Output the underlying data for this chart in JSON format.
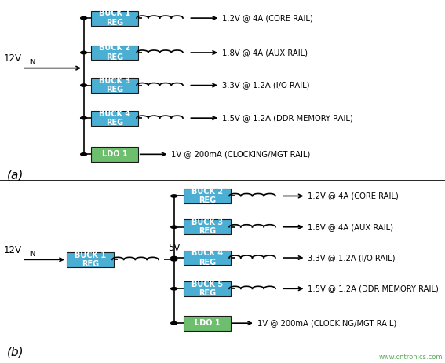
{
  "bg_color": "#ffffff",
  "buck_color": "#4bafd4",
  "ldo_color": "#6dbe6d",
  "line_color": "#000000",
  "watermark_color": "#5aab5a",
  "diagram_a": {
    "label": "(a)",
    "vin_text": "12V",
    "vin_sub": "IN",
    "bucks": [
      {
        "name": "BUCK 1\nREG",
        "output": "1.2V @ 4A (CORE RAIL)"
      },
      {
        "name": "BUCK 2\nREG",
        "output": "1.8V @ 4A (AUX RAIL)"
      },
      {
        "name": "BUCK 3\nREG",
        "output": "3.3V @ 1.2A (I/O RAIL)"
      },
      {
        "name": "BUCK 4\nREG",
        "output": "1.5V @ 1.2A (DDR MEMORY RAIL)"
      }
    ],
    "ldo": {
      "name": "LDO 1",
      "output": "1V @ 200mA (CLOCKING/MGT RAIL)"
    }
  },
  "diagram_b": {
    "label": "(b)",
    "vin_text": "12V",
    "vin_sub": "IN",
    "buck1": {
      "name": "BUCK 1\nREG"
    },
    "bus_label": "5V",
    "bucks": [
      {
        "name": "BUCK 2\nREG",
        "output": "1.2V @ 4A (CORE RAIL)"
      },
      {
        "name": "BUCK 3\nREG",
        "output": "1.8V @ 4A (AUX RAIL)"
      },
      {
        "name": "BUCK 4\nREG",
        "output": "3.3V @ 1.2A (I/O RAIL)"
      },
      {
        "name": "BUCK 5\nREG",
        "output": "1.5V @ 1.2A (DDR MEMORY RAIL)"
      }
    ],
    "ldo": {
      "name": "LDO 1",
      "output": "1V @ 200mA (CLOCKING/MGT RAIL)"
    }
  },
  "watermark": "www.cntronics.com"
}
